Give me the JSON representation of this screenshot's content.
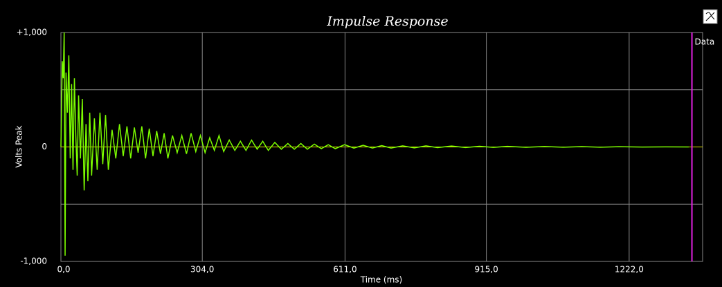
{
  "chart_data": {
    "type": "line",
    "title": "Impulse Response",
    "y_label": "Volts Peak",
    "x_label": "Time (ms)",
    "xlim": [
      0,
      1380
    ],
    "ylim": [
      -1,
      1
    ],
    "xticks": [
      {
        "value": 0,
        "label": "0,0"
      },
      {
        "value": 304,
        "label": "304,0"
      },
      {
        "value": 611,
        "label": "611,0"
      },
      {
        "value": 915,
        "label": "915,0"
      },
      {
        "value": 1222,
        "label": "1222,0"
      }
    ],
    "yticks": [
      {
        "value": -1,
        "label": "-1,000"
      },
      {
        "value": -0.5,
        "label": null
      },
      0,
      {
        "value": 0.5,
        "label": null
      },
      {
        "value": 1,
        "label": "+1,000"
      }
    ],
    "grid": true,
    "marker": {
      "label": "Data",
      "x": 1357,
      "color": "#e020e0"
    },
    "x": [
      0,
      3,
      5,
      7,
      9,
      11,
      14,
      17,
      20,
      23,
      26,
      29,
      32,
      35,
      38,
      42,
      46,
      50,
      54,
      58,
      62,
      66,
      72,
      78,
      84,
      90,
      96,
      102,
      110,
      118,
      126,
      134,
      142,
      150,
      158,
      166,
      174,
      182,
      190,
      198,
      206,
      214,
      222,
      230,
      240,
      250,
      260,
      270,
      280,
      290,
      300,
      310,
      320,
      330,
      340,
      350,
      362,
      374,
      386,
      398,
      410,
      422,
      434,
      446,
      460,
      474,
      488,
      502,
      516,
      530,
      545,
      560,
      575,
      590,
      610,
      630,
      650,
      670,
      690,
      710,
      735,
      760,
      785,
      810,
      840,
      870,
      900,
      930,
      960,
      1000,
      1040,
      1080,
      1120,
      1160,
      1200,
      1250,
      1300,
      1350
    ],
    "series": [
      {
        "name": "Data",
        "color": "#7cfc00",
        "values": [
          0,
          0.75,
          0.6,
          1.0,
          -0.95,
          0.65,
          0.3,
          0.8,
          -0.1,
          0.55,
          -0.2,
          0.6,
          0.1,
          -0.25,
          0.45,
          -0.1,
          0.42,
          -0.38,
          0.2,
          -0.3,
          0.3,
          -0.25,
          0.25,
          -0.2,
          0.3,
          -0.15,
          0.28,
          -0.2,
          0.15,
          -0.1,
          0.2,
          -0.08,
          0.18,
          -0.1,
          0.17,
          -0.05,
          0.18,
          -0.1,
          0.16,
          -0.08,
          0.14,
          -0.06,
          0.12,
          -0.1,
          0.1,
          -0.05,
          0.1,
          -0.06,
          0.12,
          -0.04,
          0.1,
          -0.05,
          0.08,
          -0.03,
          0.1,
          -0.04,
          0.06,
          -0.03,
          0.05,
          -0.03,
          0.06,
          -0.02,
          0.05,
          -0.03,
          0.04,
          -0.02,
          0.03,
          -0.02,
          0.03,
          -0.02,
          0.025,
          -0.015,
          0.02,
          -0.015,
          0.02,
          -0.01,
          0.015,
          -0.01,
          0.012,
          -0.01,
          0.01,
          -0.008,
          0.01,
          -0.006,
          0.008,
          -0.005,
          0.006,
          -0.004,
          0.005,
          -0.003,
          0.004,
          -0.002,
          0.003,
          -0.002,
          0.002,
          -0.001,
          0.001,
          0
        ]
      }
    ]
  }
}
